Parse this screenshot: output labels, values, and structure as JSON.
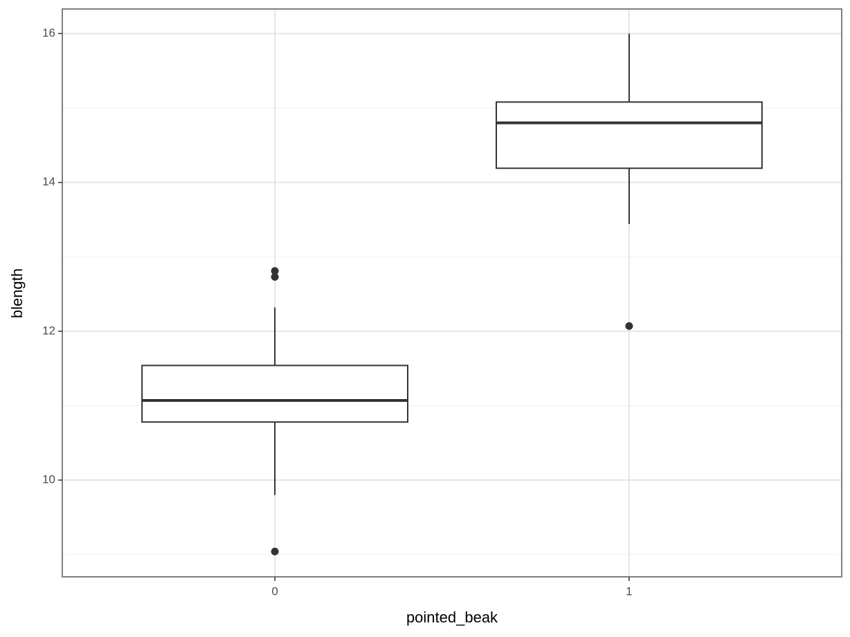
{
  "chart_data": {
    "type": "box",
    "x_label": "pointed_beak",
    "y_label": "blength",
    "categories": [
      "0",
      "1"
    ],
    "boxes": [
      {
        "whislo": 9.8,
        "q1": 10.78,
        "med": 11.07,
        "q3": 11.54,
        "whishi": 12.32,
        "fliers": [
          12.81,
          12.73,
          9.04
        ]
      },
      {
        "whislo": 13.44,
        "q1": 14.19,
        "med": 14.8,
        "q3": 15.08,
        "whishi": 16.0,
        "fliers": [
          12.07
        ]
      }
    ],
    "ylim": [
      8.7,
      16.33
    ],
    "yticks": [
      10,
      12,
      14,
      16
    ],
    "yminorticks": [
      9,
      11,
      13,
      15
    ],
    "grid": true,
    "color": "#333333"
  }
}
